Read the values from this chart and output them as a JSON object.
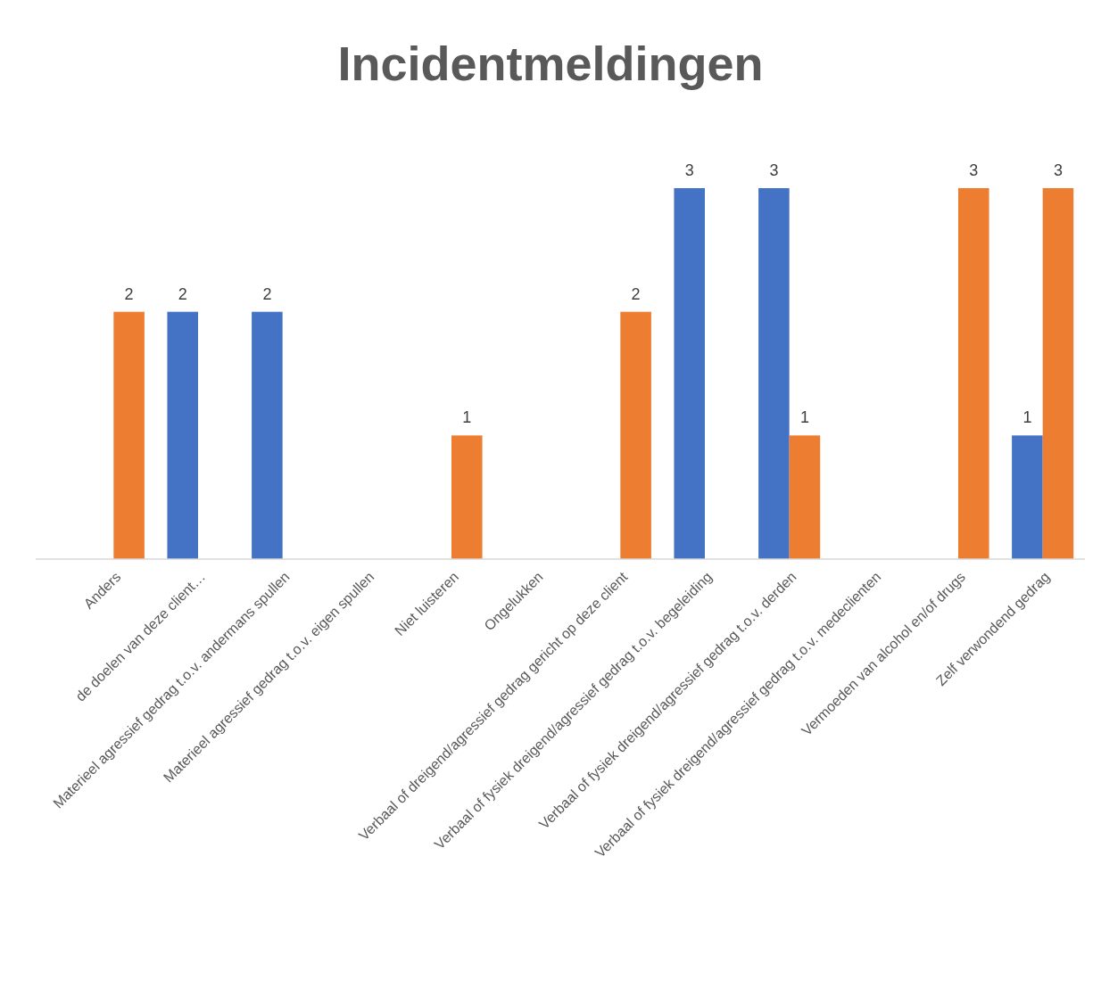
{
  "chart_data": {
    "type": "bar",
    "title": "Incidentmeldingen",
    "categories": [
      "Anders",
      "de doelen van deze client…",
      "Materieel agressief gedrag t.o.v. andermans spullen",
      "Materieel agressief gedrag t.o.v. eigen spullen",
      "Niet luisteren",
      "Ongelukken",
      "Verbaal of dreigend/agressief gedrag gericht op deze client",
      "Verbaal of fysiek dreigend/agressief gedrag t.o.v. begeleiding",
      "Verbaal of fysiek dreigend/agressief gedrag t.o.v. derden",
      "Verbaal of fysiek dreigend/agressief gedrag t.o.v. medeclienten",
      "Vermoeden van alcohol en/of drugs",
      "Zelf verwondend gedrag"
    ],
    "series": [
      {
        "color": "#4472c4",
        "values": [
          null,
          2,
          2,
          null,
          null,
          null,
          null,
          3,
          3,
          null,
          null,
          1
        ]
      },
      {
        "color": "#ed7d31",
        "values": [
          2,
          null,
          null,
          null,
          1,
          null,
          2,
          null,
          1,
          null,
          3,
          3
        ]
      }
    ],
    "data_labels": true
  }
}
